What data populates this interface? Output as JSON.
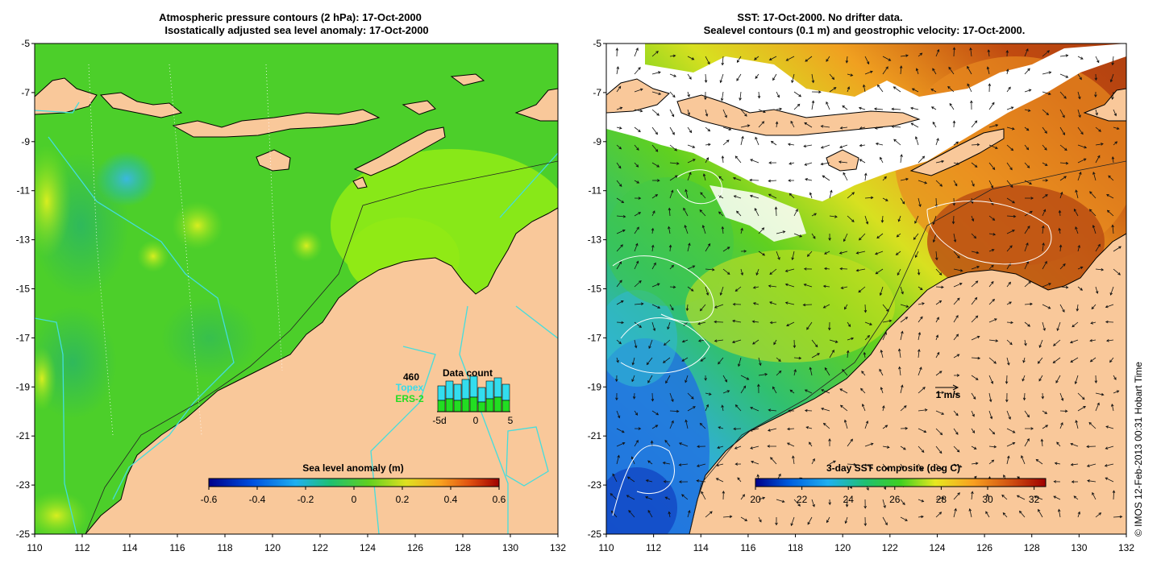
{
  "left_panel": {
    "title_line1": "Atmospheric pressure contours (2 hPa): 17-Oct-2000",
    "title_line2": "Isostatically adjusted sea level anomaly: 17-Oct-2000",
    "lat_ticks": [
      "-5",
      "-7",
      "-9",
      "-11",
      "-13",
      "-15",
      "-17",
      "-19",
      "-21",
      "-23",
      "-25"
    ],
    "lon_ticks": [
      "110",
      "112",
      "114",
      "116",
      "118",
      "120",
      "122",
      "124",
      "126",
      "128",
      "130",
      "132"
    ],
    "colorbar": {
      "label": "Sea level anomaly (m)",
      "ticks": [
        "-0.6",
        "-0.4",
        "-0.2",
        "0",
        "0.2",
        "0.4",
        "0.6"
      ],
      "range": [
        -0.6,
        0.6
      ]
    },
    "data_count": {
      "title": "Data count",
      "total": "460",
      "topex_label": "Topex",
      "ers2_label": "ERS-2",
      "axis_ticks": [
        "-5d",
        "0",
        "5"
      ],
      "topex_color": "#33ddee",
      "ers2_color": "#22dd22"
    }
  },
  "right_panel": {
    "title_line1": "SST: 17-Oct-2000. No drifter data.",
    "title_line2": "Sealevel contours (0.1 m) and geostrophic velocity: 17-Oct-2000.",
    "lat_ticks": [
      "-5",
      "-7",
      "-9",
      "-11",
      "-13",
      "-15",
      "-17",
      "-19",
      "-21",
      "-23",
      "-25"
    ],
    "lon_ticks": [
      "110",
      "112",
      "114",
      "116",
      "118",
      "120",
      "122",
      "124",
      "126",
      "128",
      "130",
      "132"
    ],
    "velocity_scale": "1 m/s",
    "colorbar": {
      "label": "3-day SST composite (deg C)",
      "ticks": [
        "20",
        "22",
        "24",
        "26",
        "28",
        "30",
        "32"
      ],
      "range": [
        20,
        32.5
      ]
    }
  },
  "credit": "© IMOS 12-Feb-2013 00:31 Hobart Time",
  "colors": {
    "land": "#f9c89a",
    "ocean_green": "#4ccf2a",
    "coast_line": "#000000",
    "bathy_line": "#44dddd"
  }
}
